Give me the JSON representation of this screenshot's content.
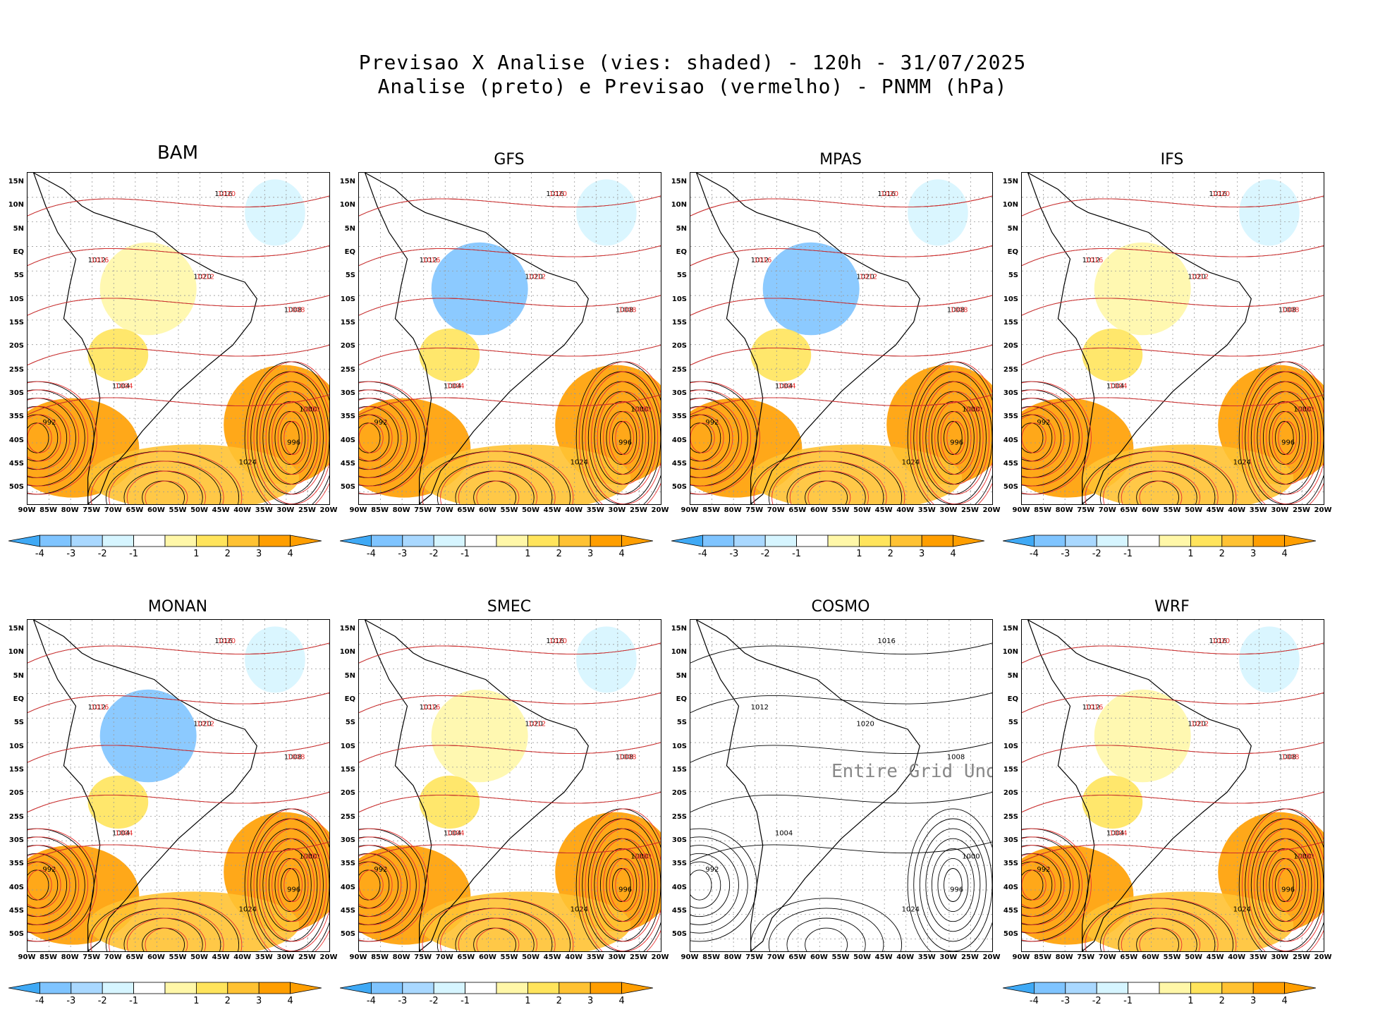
{
  "figure": {
    "title_line1": "Previsao X Analise (vies: shaded) - 120h - 31/07/2025",
    "title_line2": "Analise (preto) e Previsao (vermelho) - PNMM (hPa)"
  },
  "panels": [
    {
      "name": "BAM",
      "has_data": true,
      "big_title": true
    },
    {
      "name": "GFS",
      "has_data": true
    },
    {
      "name": "MPAS",
      "has_data": true
    },
    {
      "name": "IFS",
      "has_data": true
    },
    {
      "name": "MONAN",
      "has_data": true
    },
    {
      "name": "SMEC",
      "has_data": true
    },
    {
      "name": "COSMO",
      "has_data": false,
      "message": "Entire Grid Undef"
    },
    {
      "name": "WRF",
      "has_data": true
    }
  ],
  "axes": {
    "lat_labels": [
      "15N",
      "10N",
      "5N",
      "EQ",
      "5S",
      "10S",
      "15S",
      "20S",
      "25S",
      "30S",
      "35S",
      "40S",
      "45S",
      "50S"
    ],
    "lon_labels": [
      "90W",
      "85W",
      "80W",
      "75W",
      "70W",
      "65W",
      "60W",
      "55W",
      "50W",
      "45W",
      "40W",
      "35W",
      "30W",
      "25W",
      "20W"
    ]
  },
  "colorbar": {
    "labels": [
      "-4",
      "-3",
      "-2",
      "-1",
      "1",
      "2",
      "3",
      "4"
    ],
    "colors": [
      "#3fa9f5",
      "#7fc4ff",
      "#a9d8ff",
      "#d6f5ff",
      "#ffffff",
      "#fff7a8",
      "#ffe45c",
      "#ffc233",
      "#ff9e00"
    ]
  },
  "contour_labels": {
    "analysis": [
      "1016",
      "1012",
      "1020",
      "1008",
      "1004",
      "1000",
      "996",
      "992",
      "1024"
    ],
    "forecast": [
      "1020",
      "1016",
      "1012",
      "1008",
      "1004",
      "1000"
    ]
  },
  "colors": {
    "analysis": "#000000",
    "forecast": "#e83030"
  }
}
